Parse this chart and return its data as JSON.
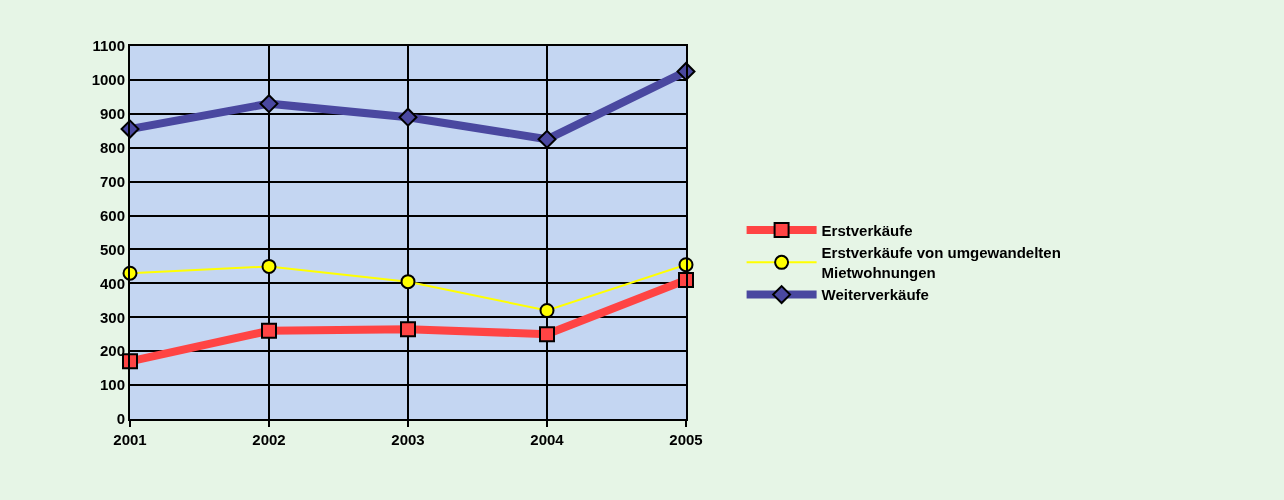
{
  "chart_data": {
    "type": "line",
    "x": [
      2001,
      2002,
      2003,
      2004,
      2005
    ],
    "xlim": [
      2001,
      2005
    ],
    "xticks": [
      2001,
      2002,
      2003,
      2004,
      2005
    ],
    "ylim": [
      0,
      1100
    ],
    "yticks": [
      0,
      100,
      200,
      300,
      400,
      500,
      600,
      700,
      800,
      900,
      1000,
      1100
    ],
    "grid": true,
    "legend": "right",
    "line_style": "solid",
    "series": [
      {
        "name": "Erstverkäufe",
        "color": "#ff4444",
        "marker": "square",
        "values": [
          170,
          260,
          265,
          250,
          410
        ]
      },
      {
        "name": "Erstverkäufe von umgewandelten Mietwohnungen",
        "color": "#ffff00",
        "marker": "circle",
        "values": [
          430,
          450,
          405,
          320,
          455
        ]
      },
      {
        "name": "Weiterverkäufe",
        "color": "#4a48a0",
        "marker": "diamond",
        "values": [
          855,
          930,
          890,
          825,
          1025
        ]
      }
    ]
  }
}
